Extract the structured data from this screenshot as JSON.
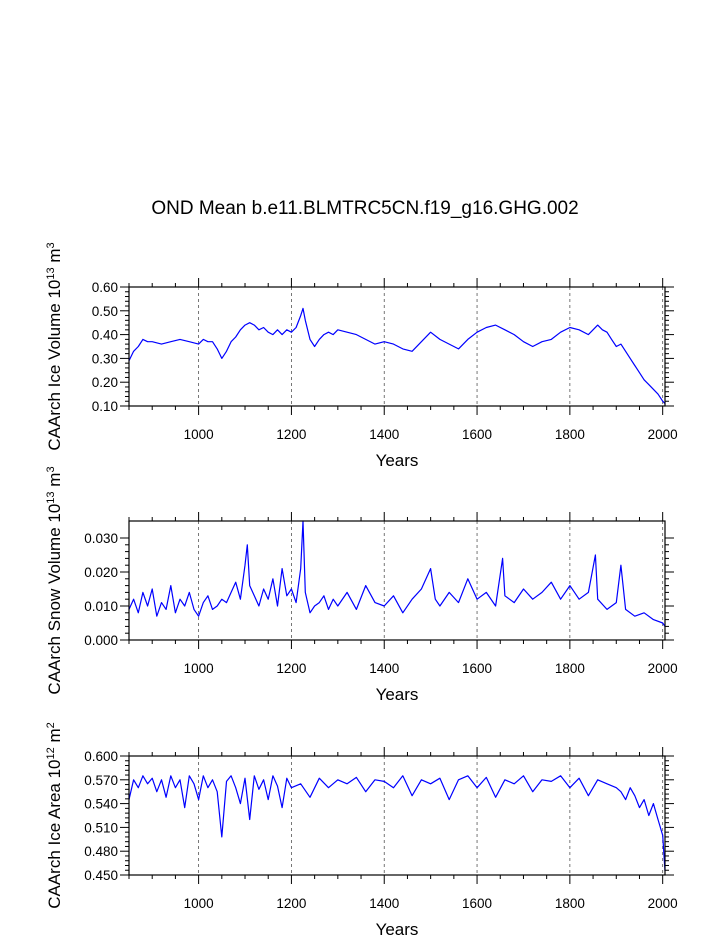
{
  "title": "OND Mean b.e11.BLMTRC5CN.f19_g16.GHG.002",
  "colors": {
    "series": "#0000ff",
    "axis": "#000000",
    "grid": "#555555"
  },
  "chart_data": [
    {
      "type": "line",
      "ylabel_main": "CAArch Ice Volume 10",
      "ylabel_sup1": "13",
      "ylabel_units": " m",
      "ylabel_sup2": "3",
      "xlabel": "Years",
      "xlim": [
        850,
        2005
      ],
      "ylim": [
        0.1,
        0.6
      ],
      "xticks": [
        1000,
        1200,
        1400,
        1600,
        1800,
        2000
      ],
      "xtick_labels": [
        "1000",
        "1200",
        "1400",
        "1600",
        "1800",
        "2000"
      ],
      "yticks": [
        0.1,
        0.2,
        0.3,
        0.4,
        0.5,
        0.6
      ],
      "ytick_labels": [
        "0.10",
        "0.20",
        "0.30",
        "0.40",
        "0.50",
        "0.60"
      ],
      "grid_x": [
        1000,
        1200,
        1400,
        1600,
        1800,
        2000
      ],
      "series": [
        {
          "name": "CAArch Ice Volume",
          "x": [
            850,
            860,
            870,
            880,
            890,
            900,
            920,
            940,
            960,
            980,
            1000,
            1010,
            1020,
            1030,
            1040,
            1050,
            1060,
            1070,
            1080,
            1090,
            1100,
            1110,
            1120,
            1130,
            1140,
            1150,
            1160,
            1170,
            1180,
            1190,
            1200,
            1210,
            1220,
            1225,
            1230,
            1240,
            1250,
            1260,
            1270,
            1280,
            1290,
            1300,
            1320,
            1340,
            1360,
            1380,
            1400,
            1420,
            1440,
            1460,
            1480,
            1500,
            1520,
            1540,
            1560,
            1580,
            1600,
            1620,
            1640,
            1660,
            1680,
            1700,
            1720,
            1740,
            1760,
            1780,
            1800,
            1820,
            1840,
            1860,
            1870,
            1880,
            1890,
            1900,
            1910,
            1920,
            1930,
            1940,
            1950,
            1960,
            1970,
            1980,
            1990,
            2000,
            2005
          ],
          "values": [
            0.29,
            0.33,
            0.35,
            0.38,
            0.37,
            0.37,
            0.36,
            0.37,
            0.38,
            0.37,
            0.36,
            0.38,
            0.37,
            0.37,
            0.34,
            0.3,
            0.33,
            0.37,
            0.39,
            0.42,
            0.44,
            0.45,
            0.44,
            0.42,
            0.43,
            0.41,
            0.4,
            0.42,
            0.4,
            0.42,
            0.41,
            0.43,
            0.48,
            0.51,
            0.46,
            0.38,
            0.35,
            0.38,
            0.4,
            0.41,
            0.4,
            0.42,
            0.41,
            0.4,
            0.38,
            0.36,
            0.37,
            0.36,
            0.34,
            0.33,
            0.37,
            0.41,
            0.38,
            0.36,
            0.34,
            0.38,
            0.41,
            0.43,
            0.44,
            0.42,
            0.4,
            0.37,
            0.35,
            0.37,
            0.38,
            0.41,
            0.43,
            0.42,
            0.4,
            0.44,
            0.42,
            0.41,
            0.38,
            0.35,
            0.36,
            0.33,
            0.3,
            0.27,
            0.24,
            0.21,
            0.19,
            0.17,
            0.15,
            0.12,
            0.11
          ]
        }
      ]
    },
    {
      "type": "line",
      "ylabel_main": "CAArch Snow Volume 10",
      "ylabel_sup1": "13",
      "ylabel_units": " m",
      "ylabel_sup2": "3",
      "xlabel": "Years",
      "xlim": [
        850,
        2005
      ],
      "ylim": [
        0.0,
        0.035
      ],
      "xticks": [
        1000,
        1200,
        1400,
        1600,
        1800,
        2000
      ],
      "xtick_labels": [
        "1000",
        "1200",
        "1400",
        "1600",
        "1800",
        "2000"
      ],
      "yticks": [
        0.0,
        0.01,
        0.02,
        0.03
      ],
      "ytick_labels": [
        "0.000",
        "0.010",
        "0.020",
        "0.030"
      ],
      "grid_x": [
        1000,
        1200,
        1400,
        1600,
        1800,
        2000
      ],
      "series": [
        {
          "name": "CAArch Snow Volume",
          "x": [
            850,
            860,
            870,
            880,
            890,
            900,
            910,
            920,
            930,
            940,
            950,
            960,
            970,
            980,
            990,
            1000,
            1010,
            1020,
            1030,
            1040,
            1050,
            1060,
            1070,
            1080,
            1090,
            1100,
            1105,
            1110,
            1120,
            1130,
            1140,
            1150,
            1160,
            1170,
            1180,
            1190,
            1200,
            1210,
            1220,
            1225,
            1230,
            1240,
            1250,
            1260,
            1270,
            1280,
            1290,
            1300,
            1320,
            1340,
            1360,
            1380,
            1400,
            1420,
            1440,
            1460,
            1480,
            1500,
            1510,
            1520,
            1540,
            1560,
            1580,
            1600,
            1620,
            1640,
            1655,
            1660,
            1680,
            1700,
            1720,
            1740,
            1760,
            1780,
            1800,
            1820,
            1840,
            1855,
            1860,
            1880,
            1900,
            1910,
            1920,
            1940,
            1960,
            1980,
            2000,
            2005
          ],
          "values": [
            0.009,
            0.012,
            0.008,
            0.014,
            0.01,
            0.015,
            0.007,
            0.011,
            0.009,
            0.016,
            0.008,
            0.012,
            0.01,
            0.014,
            0.009,
            0.007,
            0.011,
            0.013,
            0.009,
            0.01,
            0.012,
            0.011,
            0.014,
            0.017,
            0.012,
            0.022,
            0.028,
            0.016,
            0.013,
            0.01,
            0.015,
            0.012,
            0.018,
            0.01,
            0.021,
            0.013,
            0.015,
            0.011,
            0.021,
            0.035,
            0.014,
            0.008,
            0.01,
            0.011,
            0.013,
            0.009,
            0.012,
            0.01,
            0.014,
            0.009,
            0.016,
            0.011,
            0.01,
            0.013,
            0.008,
            0.012,
            0.015,
            0.021,
            0.012,
            0.01,
            0.014,
            0.011,
            0.018,
            0.012,
            0.014,
            0.01,
            0.024,
            0.013,
            0.011,
            0.015,
            0.012,
            0.014,
            0.017,
            0.012,
            0.016,
            0.012,
            0.014,
            0.025,
            0.012,
            0.009,
            0.011,
            0.022,
            0.009,
            0.007,
            0.008,
            0.006,
            0.005,
            0.004
          ]
        }
      ]
    },
    {
      "type": "line",
      "ylabel_main": "CAArch Ice Area 10",
      "ylabel_sup1": "12",
      "ylabel_units": " m",
      "ylabel_sup2": "2",
      "xlabel": "Years",
      "xlim": [
        850,
        2005
      ],
      "ylim": [
        0.45,
        0.6
      ],
      "xticks": [
        1000,
        1200,
        1400,
        1600,
        1800,
        2000
      ],
      "xtick_labels": [
        "1000",
        "1200",
        "1400",
        "1600",
        "1800",
        "2000"
      ],
      "yticks": [
        0.45,
        0.48,
        0.51,
        0.54,
        0.57,
        0.6
      ],
      "ytick_labels": [
        "0.450",
        "0.480",
        "0.510",
        "0.540",
        "0.570",
        "0.600"
      ],
      "grid_x": [
        1000,
        1200,
        1400,
        1600,
        1800,
        2000
      ],
      "series": [
        {
          "name": "CAArch Ice Area",
          "x": [
            850,
            860,
            870,
            880,
            890,
            900,
            910,
            920,
            930,
            940,
            950,
            960,
            970,
            980,
            990,
            1000,
            1010,
            1020,
            1030,
            1040,
            1050,
            1060,
            1070,
            1080,
            1090,
            1100,
            1110,
            1120,
            1130,
            1140,
            1150,
            1160,
            1170,
            1180,
            1190,
            1200,
            1220,
            1240,
            1260,
            1280,
            1300,
            1320,
            1340,
            1360,
            1380,
            1400,
            1420,
            1440,
            1460,
            1480,
            1500,
            1520,
            1540,
            1560,
            1580,
            1600,
            1620,
            1640,
            1660,
            1680,
            1700,
            1720,
            1740,
            1760,
            1780,
            1800,
            1820,
            1840,
            1860,
            1880,
            1900,
            1910,
            1920,
            1930,
            1940,
            1950,
            1960,
            1970,
            1980,
            1990,
            2000,
            2005
          ],
          "values": [
            0.545,
            0.57,
            0.56,
            0.575,
            0.565,
            0.572,
            0.555,
            0.57,
            0.548,
            0.575,
            0.56,
            0.57,
            0.535,
            0.575,
            0.565,
            0.545,
            0.575,
            0.56,
            0.57,
            0.555,
            0.498,
            0.568,
            0.575,
            0.56,
            0.54,
            0.572,
            0.52,
            0.575,
            0.558,
            0.57,
            0.545,
            0.575,
            0.562,
            0.535,
            0.572,
            0.56,
            0.565,
            0.548,
            0.572,
            0.56,
            0.57,
            0.565,
            0.573,
            0.555,
            0.57,
            0.568,
            0.56,
            0.575,
            0.55,
            0.57,
            0.565,
            0.572,
            0.545,
            0.57,
            0.575,
            0.56,
            0.573,
            0.548,
            0.57,
            0.565,
            0.575,
            0.555,
            0.57,
            0.568,
            0.575,
            0.56,
            0.572,
            0.55,
            0.57,
            0.565,
            0.56,
            0.555,
            0.545,
            0.56,
            0.55,
            0.535,
            0.545,
            0.525,
            0.54,
            0.52,
            0.5,
            0.455
          ]
        }
      ]
    }
  ]
}
